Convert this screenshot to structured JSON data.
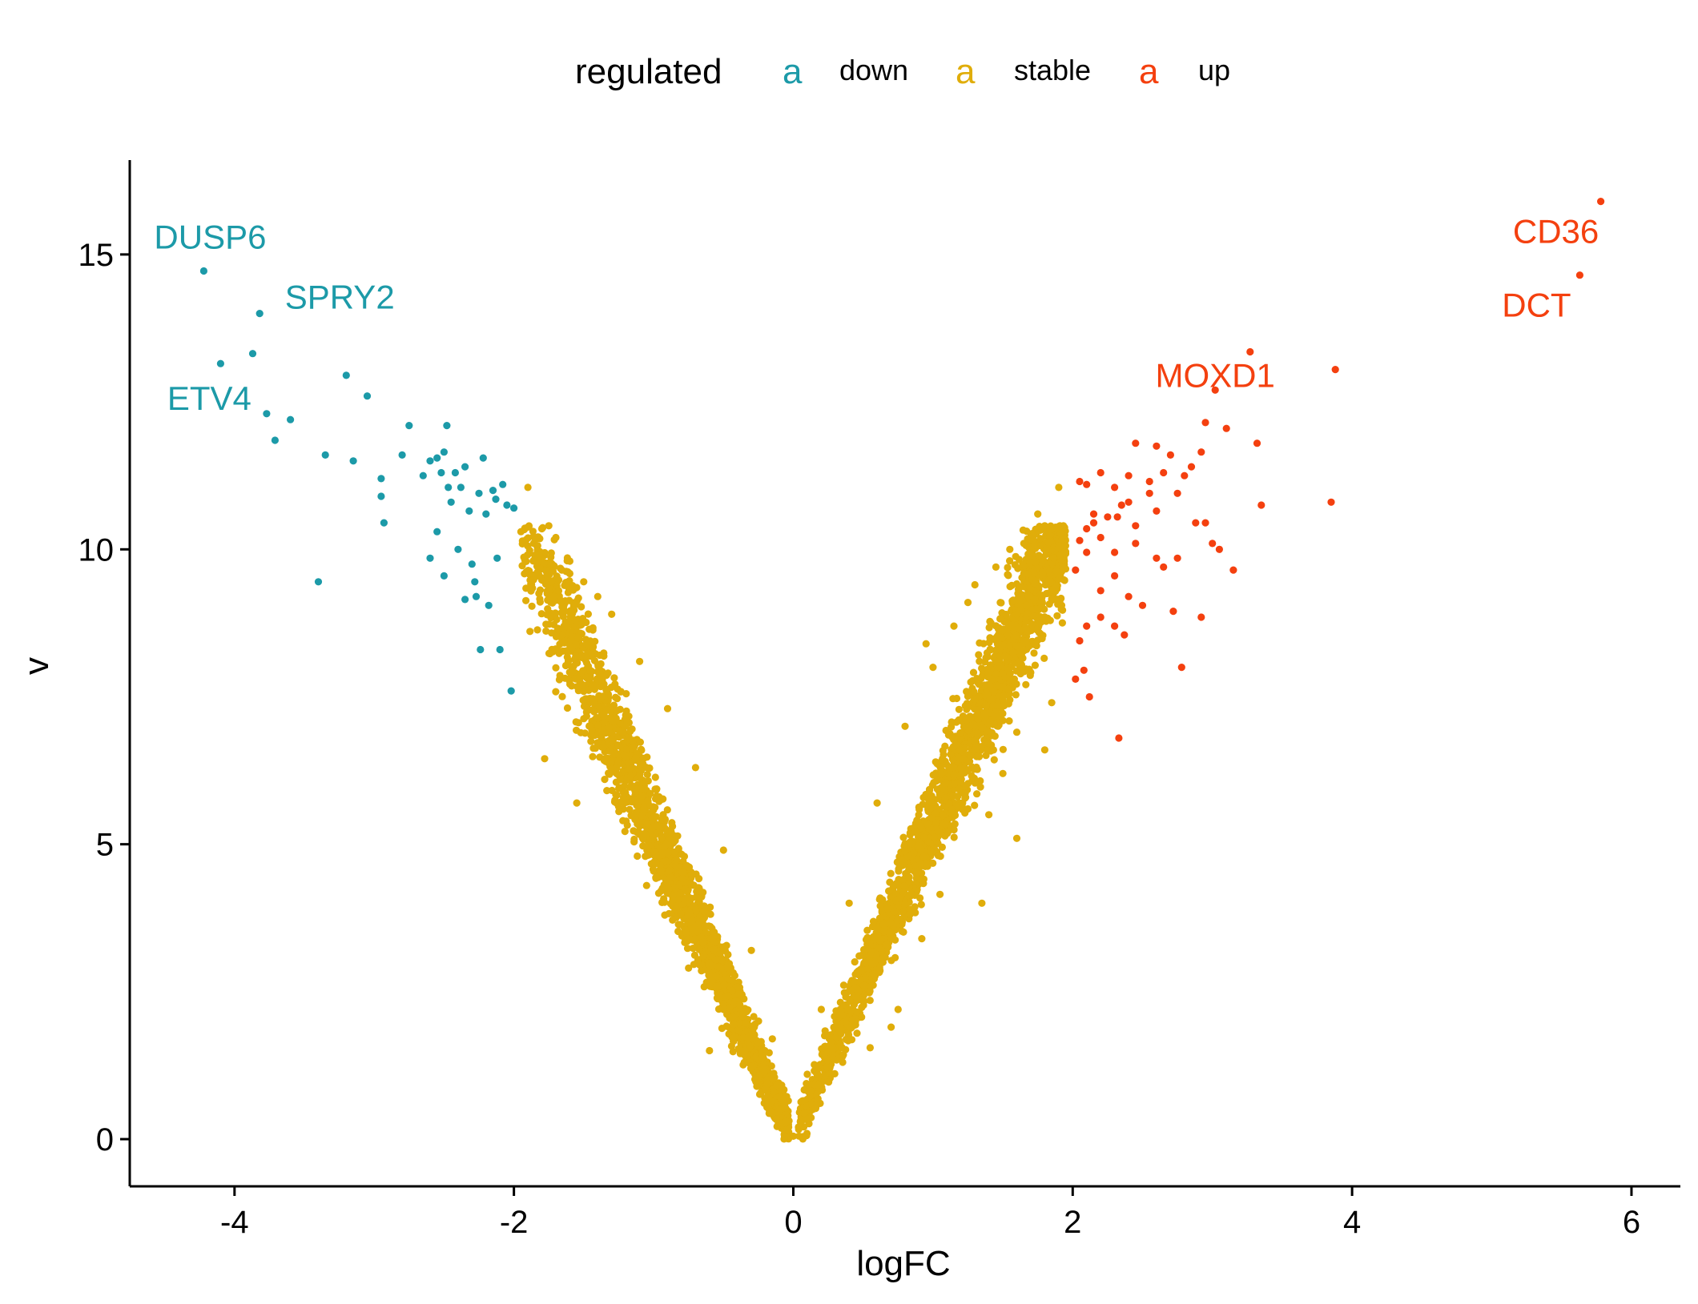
{
  "chart_data": {
    "type": "scatter",
    "title": "",
    "xlabel": "logFC",
    "ylabel": "v",
    "xlim": [
      -4.75,
      6.35
    ],
    "ylim": [
      -0.8,
      16.6
    ],
    "x_ticks": [
      -4,
      -2,
      0,
      2,
      4,
      6
    ],
    "x_tick_labels": [
      "-4",
      "-2",
      "0",
      "2",
      "4",
      "6"
    ],
    "y_ticks": [
      0,
      5,
      10,
      15
    ],
    "y_tick_labels": [
      "0",
      "5",
      "10",
      "15"
    ],
    "grid": false,
    "legend": {
      "title": "regulated",
      "placement": "top",
      "key_glyph": "a",
      "entries": [
        {
          "label": "down",
          "color": "#1C9AA8"
        },
        {
          "label": "stable",
          "color": "#E0AD0A"
        },
        {
          "label": "up",
          "color": "#F4400F"
        }
      ]
    },
    "series": [
      {
        "name": "down",
        "color": "#1C9AA8",
        "points": [
          [
            -4.22,
            14.72
          ],
          [
            -4.1,
            13.15
          ],
          [
            -3.87,
            13.32
          ],
          [
            -3.82,
            14.0
          ],
          [
            -3.77,
            12.3
          ],
          [
            -3.71,
            11.85
          ],
          [
            -3.6,
            12.2
          ],
          [
            -3.35,
            11.6
          ],
          [
            -3.4,
            9.45
          ],
          [
            -3.2,
            12.95
          ],
          [
            -3.15,
            11.5
          ],
          [
            -3.05,
            12.6
          ],
          [
            -2.95,
            11.2
          ],
          [
            -2.95,
            10.9
          ],
          [
            -2.93,
            10.45
          ],
          [
            -2.8,
            11.6
          ],
          [
            -2.75,
            12.1
          ],
          [
            -2.65,
            11.25
          ],
          [
            -2.6,
            11.5
          ],
          [
            -2.55,
            11.55
          ],
          [
            -2.52,
            11.3
          ],
          [
            -2.5,
            11.65
          ],
          [
            -2.48,
            12.1
          ],
          [
            -2.47,
            11.05
          ],
          [
            -2.45,
            10.8
          ],
          [
            -2.42,
            11.3
          ],
          [
            -2.4,
            10.0
          ],
          [
            -2.38,
            11.05
          ],
          [
            -2.35,
            11.4
          ],
          [
            -2.32,
            10.65
          ],
          [
            -2.3,
            9.75
          ],
          [
            -2.28,
            9.45
          ],
          [
            -2.27,
            9.2
          ],
          [
            -2.25,
            10.95
          ],
          [
            -2.24,
            8.3
          ],
          [
            -2.22,
            11.55
          ],
          [
            -2.2,
            10.6
          ],
          [
            -2.18,
            9.05
          ],
          [
            -2.15,
            11.0
          ],
          [
            -2.13,
            10.85
          ],
          [
            -2.12,
            9.85
          ],
          [
            -2.1,
            8.3
          ],
          [
            -2.08,
            11.1
          ],
          [
            -2.05,
            10.75
          ],
          [
            -2.02,
            7.6
          ],
          [
            -2.0,
            10.7
          ],
          [
            -2.6,
            9.85
          ],
          [
            -2.55,
            10.3
          ],
          [
            -2.5,
            9.55
          ],
          [
            -2.35,
            9.15
          ]
        ]
      },
      {
        "name": "stable",
        "color": "#E0AD0A",
        "points": [
          [
            -1.9,
            11.05
          ],
          [
            -1.95,
            10.3
          ],
          [
            -1.8,
            10.35
          ],
          [
            -1.75,
            10.4
          ],
          [
            -1.7,
            10.2
          ],
          [
            -1.85,
            9.9
          ],
          [
            -1.6,
            9.8
          ],
          [
            -1.5,
            9.45
          ],
          [
            -1.3,
            8.9
          ],
          [
            -1.1,
            8.1
          ],
          [
            -0.9,
            7.3
          ],
          [
            -0.7,
            6.3
          ],
          [
            -0.5,
            4.9
          ],
          [
            -0.3,
            3.2
          ],
          [
            -0.15,
            1.7
          ],
          [
            -1.78,
            6.45
          ],
          [
            -1.22,
            5.4
          ],
          [
            -1.05,
            4.3
          ],
          [
            -0.92,
            3.8
          ],
          [
            -0.75,
            2.9
          ],
          [
            -0.5,
            2.2
          ],
          [
            -0.6,
            1.5
          ],
          [
            -1.35,
            6.1
          ],
          [
            -1.55,
            5.7
          ],
          [
            -1.2,
            7.0
          ],
          [
            1.9,
            11.05
          ],
          [
            1.8,
            10.4
          ],
          [
            1.75,
            10.6
          ],
          [
            1.65,
            10.1
          ],
          [
            1.55,
            10.0
          ],
          [
            1.45,
            9.7
          ],
          [
            1.3,
            9.4
          ],
          [
            1.15,
            8.7
          ],
          [
            1.0,
            8.0
          ],
          [
            0.8,
            7.0
          ],
          [
            0.6,
            5.7
          ],
          [
            0.4,
            4.0
          ],
          [
            0.2,
            2.2
          ],
          [
            0.1,
            1.1
          ],
          [
            1.35,
            4.0
          ],
          [
            1.05,
            4.15
          ],
          [
            0.92,
            3.4
          ],
          [
            0.75,
            2.2
          ],
          [
            0.7,
            1.9
          ],
          [
            0.55,
            1.55
          ],
          [
            1.6,
            8.9
          ],
          [
            1.85,
            7.4
          ],
          [
            1.55,
            7.45
          ],
          [
            1.8,
            6.6
          ],
          [
            1.6,
            6.9
          ],
          [
            1.5,
            6.2
          ],
          [
            1.25,
            5.6
          ],
          [
            1.4,
            5.5
          ],
          [
            1.6,
            5.1
          ],
          [
            0.0,
            0.05
          ],
          [
            -0.05,
            0.3
          ],
          [
            0.05,
            0.3
          ],
          [
            1.25,
            9.1
          ],
          [
            0.95,
            8.4
          ],
          [
            -1.4,
            9.2
          ]
        ],
        "bands": [
          {
            "x_from": -1.95,
            "x_to": -0.03,
            "y_mid_slope": -5.3,
            "spread": 0.9,
            "density": 2200
          },
          {
            "x_from": 0.03,
            "x_to": 1.95,
            "y_mid_slope": 5.4,
            "spread": 0.9,
            "density": 2200
          }
        ]
      },
      {
        "name": "up",
        "color": "#F4400F",
        "points": [
          [
            5.78,
            15.9
          ],
          [
            5.63,
            14.65
          ],
          [
            3.27,
            13.35
          ],
          [
            3.88,
            13.05
          ],
          [
            3.02,
            12.7
          ],
          [
            2.95,
            12.15
          ],
          [
            3.1,
            12.05
          ],
          [
            3.32,
            11.8
          ],
          [
            2.45,
            11.8
          ],
          [
            2.6,
            11.75
          ],
          [
            2.7,
            11.6
          ],
          [
            2.85,
            11.4
          ],
          [
            2.92,
            11.65
          ],
          [
            2.8,
            11.25
          ],
          [
            2.65,
            11.3
          ],
          [
            2.55,
            11.15
          ],
          [
            2.4,
            11.25
          ],
          [
            2.3,
            11.05
          ],
          [
            2.2,
            11.3
          ],
          [
            2.1,
            11.1
          ],
          [
            2.05,
            11.15
          ],
          [
            2.15,
            10.6
          ],
          [
            2.25,
            10.55
          ],
          [
            2.35,
            10.75
          ],
          [
            2.45,
            10.4
          ],
          [
            2.1,
            10.35
          ],
          [
            2.05,
            10.15
          ],
          [
            2.2,
            10.2
          ],
          [
            2.3,
            9.95
          ],
          [
            2.1,
            9.95
          ],
          [
            2.15,
            10.45
          ],
          [
            2.32,
            10.55
          ],
          [
            2.55,
            10.95
          ],
          [
            2.75,
            10.95
          ],
          [
            2.4,
            10.8
          ],
          [
            2.88,
            10.45
          ],
          [
            2.95,
            10.45
          ],
          [
            3.0,
            10.1
          ],
          [
            3.05,
            10.0
          ],
          [
            3.15,
            9.65
          ],
          [
            3.35,
            10.75
          ],
          [
            3.85,
            10.8
          ],
          [
            2.6,
            9.85
          ],
          [
            2.65,
            9.7
          ],
          [
            2.75,
            9.85
          ],
          [
            2.72,
            8.95
          ],
          [
            2.92,
            8.85
          ],
          [
            2.3,
            9.55
          ],
          [
            2.2,
            9.3
          ],
          [
            2.4,
            9.2
          ],
          [
            2.5,
            9.05
          ],
          [
            2.2,
            8.85
          ],
          [
            2.1,
            8.7
          ],
          [
            2.3,
            8.7
          ],
          [
            2.37,
            8.55
          ],
          [
            2.05,
            8.45
          ],
          [
            2.02,
            7.8
          ],
          [
            2.08,
            7.95
          ],
          [
            2.12,
            7.5
          ],
          [
            2.33,
            6.8
          ],
          [
            2.78,
            8.0
          ],
          [
            2.02,
            9.65
          ],
          [
            2.6,
            10.65
          ],
          [
            2.45,
            10.1
          ]
        ]
      }
    ],
    "annotations": [
      {
        "text": "DUSP6",
        "x": -4.22,
        "y": 14.72,
        "color": "#1C9AA8"
      },
      {
        "text": "SPRY2",
        "x": -3.82,
        "y": 14.0,
        "color": "#1C9AA8"
      },
      {
        "text": "ETV4",
        "x": -4.1,
        "y": 13.15,
        "color": "#1C9AA8"
      },
      {
        "text": "CD36",
        "x": 5.78,
        "y": 15.9,
        "color": "#F4400F"
      },
      {
        "text": "DCT",
        "x": 5.63,
        "y": 14.65,
        "color": "#F4400F"
      },
      {
        "text": "MOXD1",
        "x": 3.02,
        "y": 12.7,
        "color": "#F4400F"
      }
    ]
  }
}
